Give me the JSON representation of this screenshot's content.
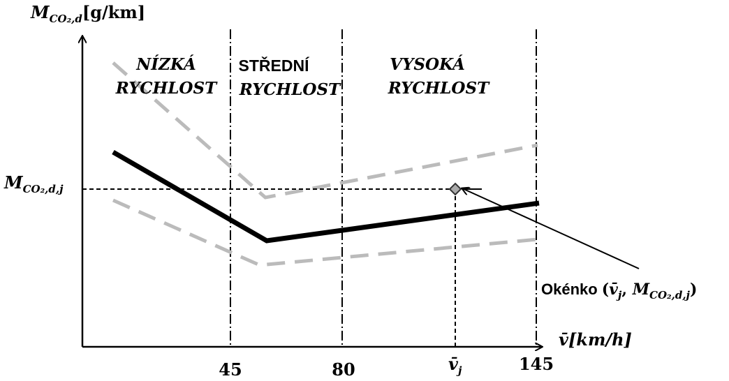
{
  "y_axis": {
    "symbol": "M",
    "subscript": "CO₂,d",
    "unit": "[g/km]"
  },
  "x_axis": {
    "symbol": "v̄",
    "unit": "[km/h]"
  },
  "zones": [
    {
      "line1": "NÍZKÁ",
      "line2": "RYCHLOST"
    },
    {
      "line1": "STŘEDNÍ",
      "line2": "RYCHLOST"
    },
    {
      "line1": "VYSOKÁ",
      "line2": "RYCHLOST"
    }
  ],
  "x_ticks": [
    "45",
    "80",
    "145"
  ],
  "v_marker": {
    "symbol": "v̄",
    "subscript": "j"
  },
  "m_marker": {
    "symbol": "M",
    "subscript": "CO₂,d,j"
  },
  "annotation": {
    "label": "Okénko",
    "open": "(",
    "x": "v̄",
    "x_sub": "j",
    "sep": ", ",
    "y": "M",
    "y_sub": "CO₂,d,j",
    "close": ")"
  }
}
